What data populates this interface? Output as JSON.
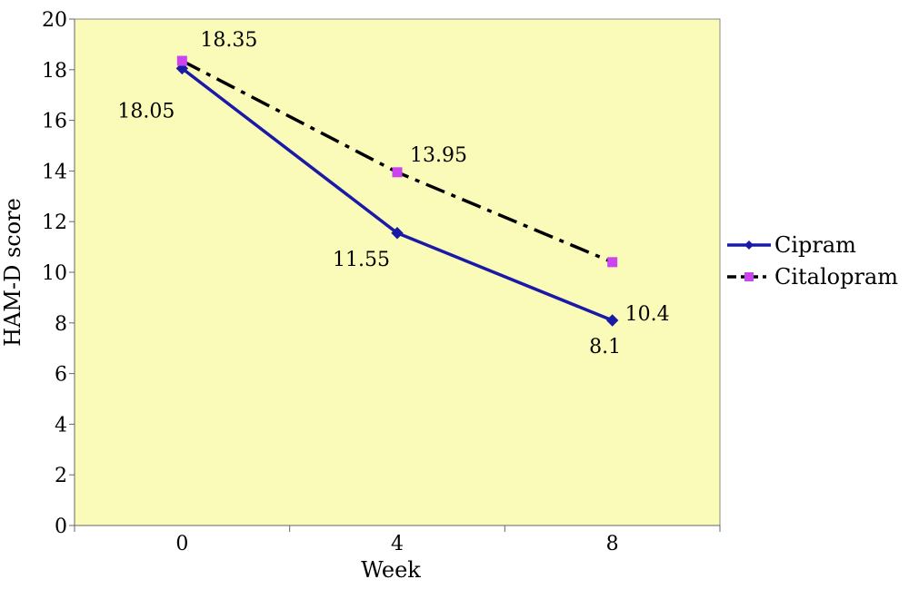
{
  "chart_data": {
    "type": "line",
    "x": [
      0,
      4,
      8
    ],
    "x_tick_labels": [
      "0",
      "4",
      "8"
    ],
    "xlabel": "Week",
    "ylabel": "HAM-D score",
    "ylim": [
      0,
      20
    ],
    "y_ticks": [
      0,
      2,
      4,
      6,
      8,
      10,
      12,
      14,
      16,
      18,
      20
    ],
    "grid": false,
    "legend": "right",
    "plot_background": "#FAFAB9",
    "series": [
      {
        "name": "Cipram",
        "values": [
          18.05,
          11.55,
          8.1
        ],
        "value_labels": [
          "18.05",
          "11.55",
          "8.1"
        ],
        "color": "#1A1AA6",
        "line_style": "solid",
        "marker": "diamond"
      },
      {
        "name": "Citalopram",
        "values": [
          18.35,
          13.95,
          10.4
        ],
        "value_labels": [
          "18.35",
          "13.95",
          "10.4"
        ],
        "color": "#000000",
        "marker_color": "#CC44EE",
        "line_style": "dash-dot",
        "marker": "square"
      }
    ]
  }
}
